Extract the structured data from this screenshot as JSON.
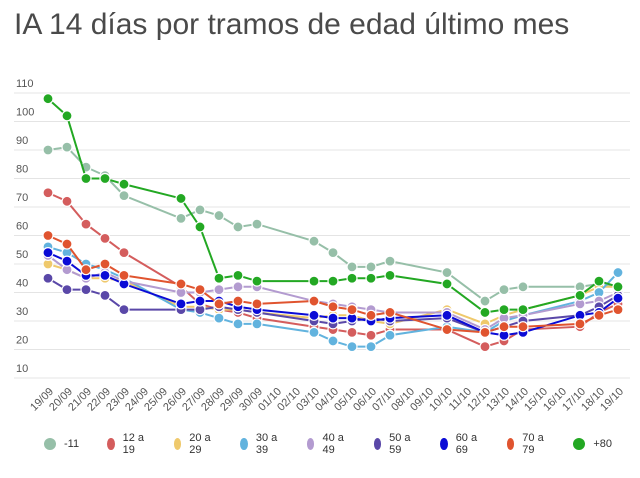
{
  "chart_data": {
    "type": "line",
    "title": "IA 14 días por tramos de edad último mes",
    "xlabel": "",
    "ylabel": "",
    "ylim": [
      10,
      110
    ],
    "yticks": [
      10,
      20,
      30,
      40,
      50,
      60,
      70,
      80,
      90,
      100,
      110
    ],
    "grid": true,
    "legend": "bottom",
    "categories": [
      "19/09",
      "20/09",
      "21/09",
      "22/09",
      "23/09",
      "24/09",
      "25/09",
      "26/09",
      "27/09",
      "28/09",
      "29/09",
      "30/09",
      "01/10",
      "02/10",
      "03/10",
      "04/10",
      "05/10",
      "06/10",
      "07/10",
      "08/10",
      "09/10",
      "10/10",
      "11/10",
      "12/10",
      "13/10",
      "14/10",
      "15/10",
      "16/10",
      "17/10",
      "18/10",
      "19/10"
    ],
    "x": [
      "19/09",
      "20/09",
      "21/09",
      "22/09",
      "23/09",
      "26/09",
      "27/09",
      "28/09",
      "29/09",
      "30/09",
      "03/10",
      "04/10",
      "05/10",
      "06/10",
      "07/10",
      "10/10",
      "12/10",
      "13/10",
      "14/10",
      "17/10",
      "18/10",
      "19/10"
    ],
    "series": [
      {
        "name": "-11",
        "color": "#96bfa8",
        "values": [
          90,
          91,
          84,
          81,
          74,
          66,
          69,
          67,
          63,
          64,
          58,
          54,
          49,
          49,
          51,
          47,
          37,
          41,
          42,
          42,
          43,
          42
        ]
      },
      {
        "name": "12 a 19",
        "color": "#d45d5d",
        "values": [
          75,
          72,
          64,
          59,
          54,
          42,
          36,
          34,
          33,
          31,
          28,
          27,
          26,
          25,
          27,
          27,
          21,
          23,
          27,
          28,
          33,
          36
        ]
      },
      {
        "name": "20 a 29",
        "color": "#efc96c",
        "values": [
          50,
          48,
          45,
          45,
          44,
          35,
          35,
          34,
          34,
          33,
          31,
          32,
          32,
          30,
          29,
          34,
          29,
          32,
          34,
          39,
          42,
          42
        ]
      },
      {
        "name": "30 a 39",
        "color": "#62b3de",
        "values": [
          56,
          54,
          50,
          48,
          45,
          34,
          33,
          31,
          29,
          29,
          26,
          23,
          21,
          21,
          25,
          28,
          26,
          30,
          32,
          37,
          40,
          47
        ]
      },
      {
        "name": "40 a 49",
        "color": "#b39bd0",
        "values": [
          53,
          48,
          45,
          47,
          44,
          40,
          40,
          41,
          42,
          42,
          37,
          36,
          35,
          34,
          33,
          33,
          27,
          31,
          32,
          36,
          37,
          40
        ]
      },
      {
        "name": "50 a 59",
        "color": "#5a48a8",
        "values": [
          45,
          41,
          41,
          39,
          34,
          34,
          34,
          35,
          34,
          33,
          30,
          29,
          30,
          31,
          30,
          31,
          26,
          28,
          30,
          32,
          35,
          39
        ]
      },
      {
        "name": "60 a 69",
        "color": "#0b0bd6",
        "values": [
          54,
          51,
          46,
          46,
          43,
          36,
          37,
          37,
          35,
          34,
          32,
          31,
          31,
          30,
          31,
          32,
          26,
          25,
          26,
          32,
          33,
          38
        ]
      },
      {
        "name": "70 a 79",
        "color": "#e0542f",
        "values": [
          60,
          57,
          48,
          50,
          46,
          43,
          41,
          36,
          37,
          36,
          37,
          35,
          34,
          32,
          33,
          27,
          26,
          28,
          28,
          29,
          32,
          34
        ]
      },
      {
        "name": "+80",
        "color": "#23a823",
        "values": [
          108,
          102,
          80,
          80,
          78,
          73,
          63,
          45,
          46,
          44,
          44,
          44,
          45,
          45,
          46,
          43,
          33,
          34,
          34,
          39,
          44,
          42
        ]
      }
    ]
  }
}
